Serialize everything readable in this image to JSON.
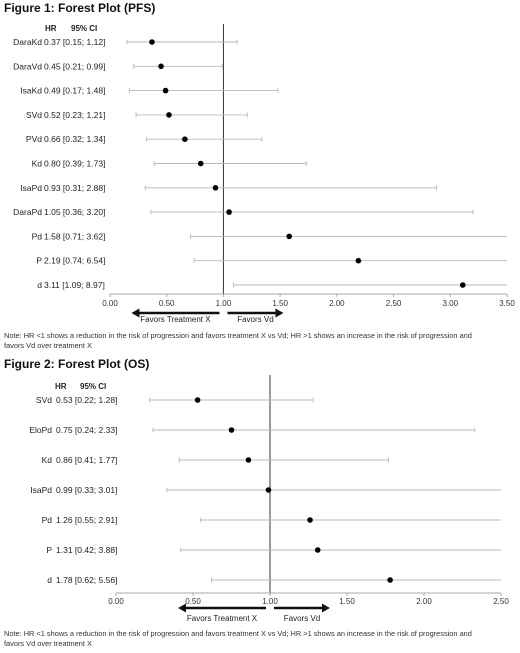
{
  "chart_data": [
    {
      "type": "scatter",
      "subtype": "forest-plot",
      "title": "Figure 1: Forest Plot (PFS)",
      "header_hr": "HR",
      "header_ci": "95% CI",
      "reference_line": 1.0,
      "xlim": [
        0,
        3.5
      ],
      "xticks": [
        "0.00",
        "0.50",
        "1.00",
        "1.50",
        "2.00",
        "2.50",
        "3.00",
        "3.50"
      ],
      "favors_left": "Favors Treatment X",
      "favors_right": "Favors Vd",
      "note": [
        "Note: HR <1 shows a reduction in the risk of progression and favors treatment X vs Vd;  HR >1 shows an increase in the risk of progression and",
        "favors Vd over treatment X"
      ],
      "rows": [
        {
          "name": "DaraKd",
          "label": "0.37 [0.15; 1.12]",
          "hr": 0.37,
          "lo": 0.15,
          "hi": 1.12
        },
        {
          "name": "DaraVd",
          "label": "0.45 [0.21; 0.99]",
          "hr": 0.45,
          "lo": 0.21,
          "hi": 0.99
        },
        {
          "name": "IsaKd",
          "label": "0.49 [0.17; 1.48]",
          "hr": 0.49,
          "lo": 0.17,
          "hi": 1.48
        },
        {
          "name": "SVd",
          "label": "0.52 [0.23; 1.21]",
          "hr": 0.52,
          "lo": 0.23,
          "hi": 1.21
        },
        {
          "name": "PVd",
          "label": "0.66 [0.32; 1.34]",
          "hr": 0.66,
          "lo": 0.32,
          "hi": 1.34
        },
        {
          "name": "Kd",
          "label": "0.80 [0.39; 1.73]",
          "hr": 0.8,
          "lo": 0.39,
          "hi": 1.73
        },
        {
          "name": "IsaPd",
          "label": "0.93 [0.31; 2.88]",
          "hr": 0.93,
          "lo": 0.31,
          "hi": 2.88
        },
        {
          "name": "DaraPd",
          "label": "1.05 [0.36; 3.20]",
          "hr": 1.05,
          "lo": 0.36,
          "hi": 3.2
        },
        {
          "name": "Pd",
          "label": "1.58 [0.71; 3.62]",
          "hr": 1.58,
          "lo": 0.71,
          "hi": 3.62
        },
        {
          "name": "P",
          "label": "2.19 [0.74; 6.54]",
          "hr": 2.19,
          "lo": 0.74,
          "hi": 6.54
        },
        {
          "name": "d",
          "label": "3.11 [1.09; 8.97]",
          "hr": 3.11,
          "lo": 1.09,
          "hi": 8.97
        }
      ]
    },
    {
      "type": "scatter",
      "subtype": "forest-plot",
      "title": "Figure 2: Forest Plot (OS)",
      "header_hr": "HR",
      "header_ci": "95% CI",
      "reference_line": 1.0,
      "xlim": [
        0,
        2.5
      ],
      "xticks": [
        "0.00",
        "0.50",
        "1.00",
        "1.50",
        "2.00",
        "2.50"
      ],
      "favors_left": "Favors Treatment X",
      "favors_right": "Favors Vd",
      "note": [
        "Note: HR <1 shows a reduction in the risk of progression and favors treatment X vs Vd;  HR >1 shows an increase in the risk of progression and",
        "favors Vd over treatment X"
      ],
      "rows": [
        {
          "name": "SVd",
          "label": "0.53 [0.22; 1.28]",
          "hr": 0.53,
          "lo": 0.22,
          "hi": 1.28
        },
        {
          "name": "EloPd",
          "label": "0.75 [0.24; 2.33]",
          "hr": 0.75,
          "lo": 0.24,
          "hi": 2.33
        },
        {
          "name": "Kd",
          "label": "0.86 [0.41; 1.77]",
          "hr": 0.86,
          "lo": 0.41,
          "hi": 1.77
        },
        {
          "name": "IsaPd",
          "label": "0.99 [0.33; 3.01]",
          "hr": 0.99,
          "lo": 0.33,
          "hi": 3.01
        },
        {
          "name": "Pd",
          "label": "1.26 [0.55; 2.91]",
          "hr": 1.26,
          "lo": 0.55,
          "hi": 2.91
        },
        {
          "name": "P",
          "label": "1.31 [0.42; 3.88]",
          "hr": 1.31,
          "lo": 0.42,
          "hi": 3.88
        },
        {
          "name": "d",
          "label": "1.78 [0.62; 5.56]",
          "hr": 1.78,
          "lo": 0.62,
          "hi": 5.56
        }
      ]
    }
  ],
  "colors": {
    "point": "#000000",
    "ci_line": "#b8b8b8",
    "reference_line": "#333333",
    "axis": "#aaaaaa",
    "arrow": "#111111"
  }
}
